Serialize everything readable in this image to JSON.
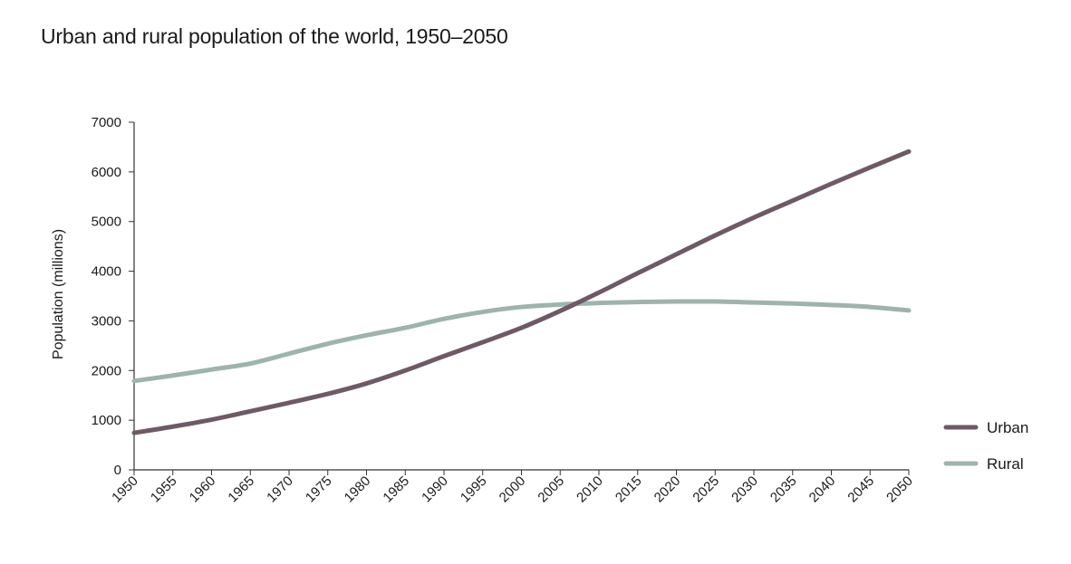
{
  "chart_data": {
    "type": "line",
    "title": "Urban and rural population of the world, 1950–2050",
    "xlabel": "",
    "ylabel": "Population (millions)",
    "xlim": [
      1950,
      2050
    ],
    "ylim": [
      0,
      7000
    ],
    "yticks": [
      0,
      1000,
      2000,
      3000,
      4000,
      5000,
      6000,
      7000
    ],
    "xticks": [
      1950,
      1955,
      1960,
      1965,
      1970,
      1975,
      1980,
      1985,
      1990,
      1995,
      2000,
      2005,
      2010,
      2015,
      2020,
      2025,
      2030,
      2035,
      2040,
      2045,
      2050
    ],
    "grid": false,
    "legend_position": "right",
    "x": [
      1950,
      1955,
      1960,
      1965,
      1970,
      1975,
      1980,
      1985,
      1990,
      1995,
      2000,
      2005,
      2010,
      2015,
      2020,
      2025,
      2030,
      2035,
      2040,
      2045,
      2050
    ],
    "series": [
      {
        "name": "Urban",
        "color": "#6e5a64",
        "values": [
          745,
          870,
          1010,
          1180,
          1350,
          1530,
          1740,
          2000,
          2290,
          2570,
          2860,
          3200,
          3570,
          3960,
          4340,
          4720,
          5080,
          5420,
          5760,
          6090,
          6410
        ]
      },
      {
        "name": "Rural",
        "color": "#9fb3ad",
        "values": [
          1790,
          1900,
          2020,
          2140,
          2340,
          2540,
          2710,
          2860,
          3040,
          3180,
          3280,
          3330,
          3360,
          3380,
          3390,
          3390,
          3370,
          3350,
          3320,
          3280,
          3210
        ]
      }
    ]
  }
}
